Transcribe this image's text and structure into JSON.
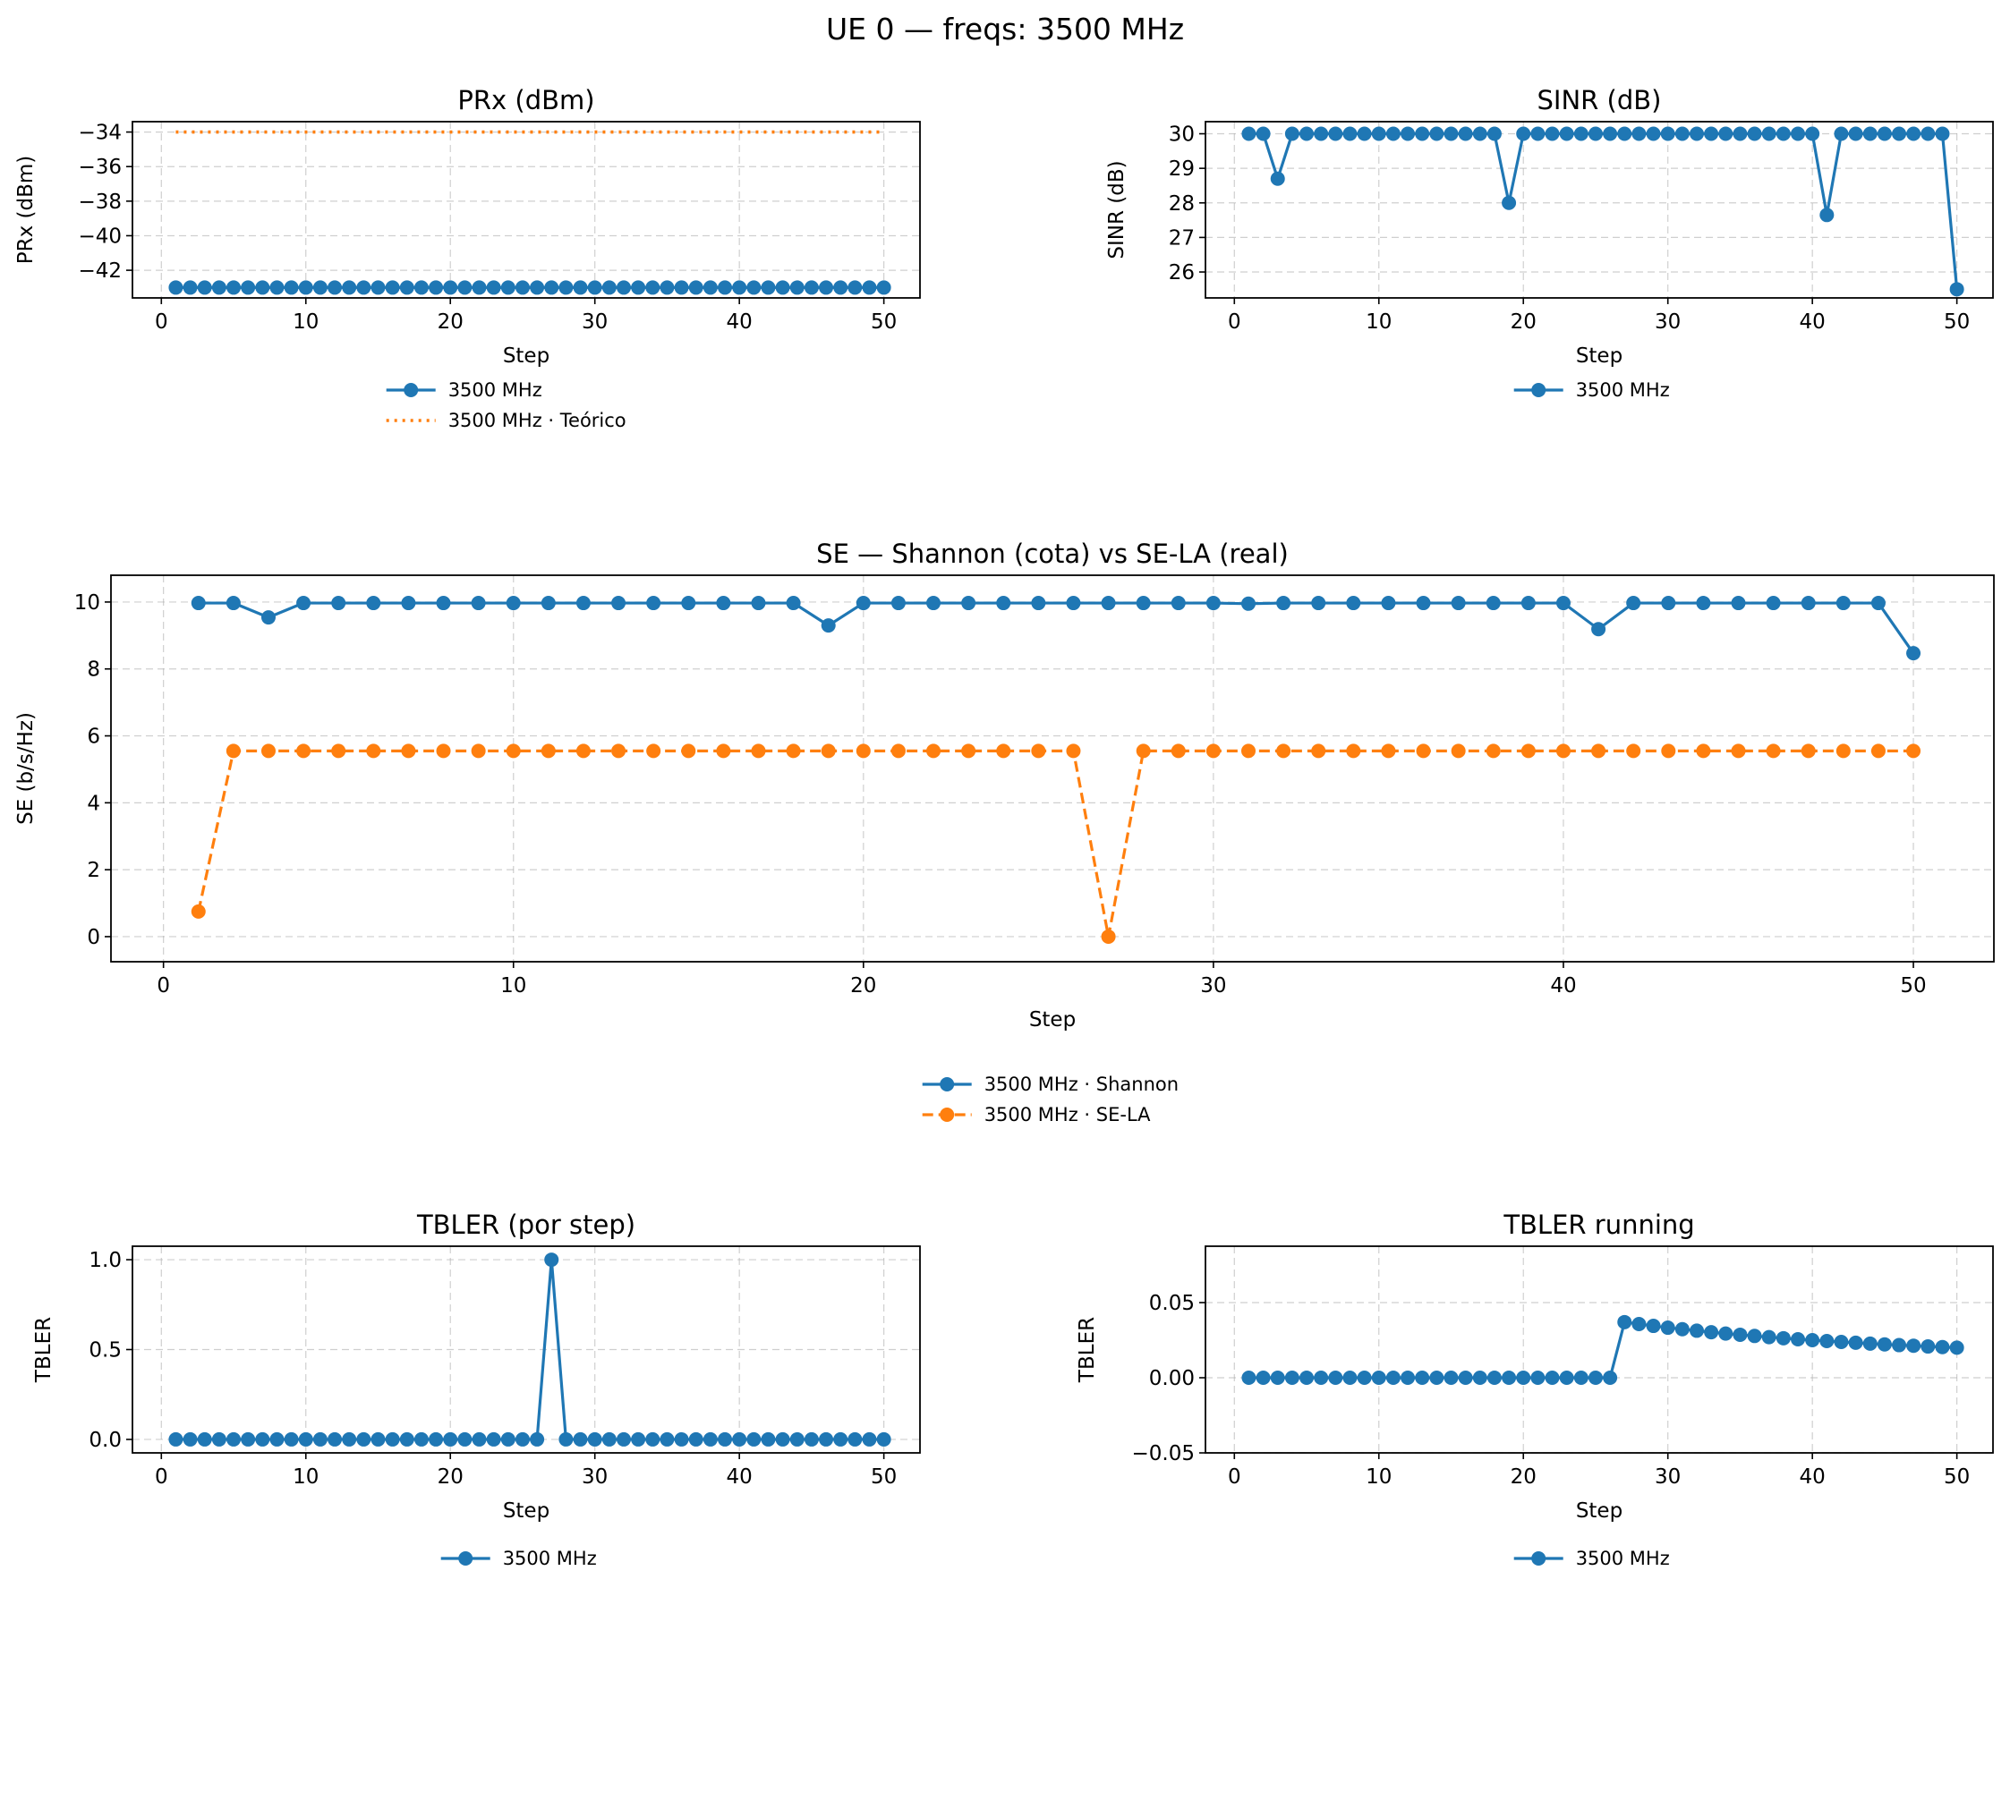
{
  "suptitle": "UE 0 — freqs: 3500 MHz",
  "colors": {
    "blue": "#1f77b4",
    "orange": "#ff7f0e"
  },
  "chart_data": [
    {
      "id": "prx",
      "type": "line",
      "title": "PRx (dBm)",
      "xlabel": "Step",
      "ylabel": "PRx (dBm)",
      "xlim": [
        -2,
        52.5
      ],
      "ylim": [
        -43.6,
        -33.4
      ],
      "xticks": [
        0,
        10,
        20,
        30,
        40,
        50
      ],
      "yticks": [
        -42,
        -40,
        -38,
        -36,
        -34
      ],
      "ytick_labels": [
        "−42",
        "−40",
        "−38",
        "−36",
        "−34"
      ],
      "grid": true,
      "legend_position": "below",
      "series": [
        {
          "name": "3500 MHz",
          "color": "#1f77b4",
          "style": "solid-marker",
          "x_start": 1,
          "x_end": 50,
          "values": [
            -43,
            -43,
            -43,
            -43,
            -43,
            -43,
            -43,
            -43,
            -43,
            -43,
            -43,
            -43,
            -43,
            -43,
            -43,
            -43,
            -43,
            -43,
            -43,
            -43,
            -43,
            -43,
            -43,
            -43,
            -43,
            -43,
            -43,
            -43,
            -43,
            -43,
            -43,
            -43,
            -43,
            -43,
            -43,
            -43,
            -43,
            -43,
            -43,
            -43,
            -43,
            -43,
            -43,
            -43,
            -43,
            -43,
            -43,
            -43,
            -43,
            -43
          ]
        },
        {
          "name": "3500 MHz · Teórico",
          "color": "#ff7f0e",
          "style": "dotted",
          "x_start": 1,
          "x_end": 50,
          "values": [
            -34,
            -34,
            -34,
            -34,
            -34,
            -34,
            -34,
            -34,
            -34,
            -34,
            -34,
            -34,
            -34,
            -34,
            -34,
            -34,
            -34,
            -34,
            -34,
            -34,
            -34,
            -34,
            -34,
            -34,
            -34,
            -34,
            -34,
            -34,
            -34,
            -34,
            -34,
            -34,
            -34,
            -34,
            -34,
            -34,
            -34,
            -34,
            -34,
            -34,
            -34,
            -34,
            -34,
            -34,
            -34,
            -34,
            -34,
            -34,
            -34,
            -34
          ]
        }
      ]
    },
    {
      "id": "sinr",
      "type": "line",
      "title": "SINR (dB)",
      "xlabel": "Step",
      "ylabel": "SINR (dB)",
      "xlim": [
        -2,
        52.5
      ],
      "ylim": [
        25.25,
        30.35
      ],
      "xticks": [
        0,
        10,
        20,
        30,
        40,
        50
      ],
      "yticks": [
        26,
        27,
        28,
        29,
        30
      ],
      "grid": true,
      "legend_position": "below",
      "series": [
        {
          "name": "3500 MHz",
          "color": "#1f77b4",
          "style": "solid-marker",
          "x_start": 1,
          "x_end": 50,
          "values": [
            30,
            30,
            28.7,
            30,
            30,
            30,
            30,
            30,
            30,
            30,
            30,
            30,
            30,
            30,
            30,
            30,
            30,
            30,
            28,
            30,
            30,
            30,
            30,
            30,
            30,
            30,
            30,
            30,
            30,
            30,
            30,
            30,
            30,
            30,
            30,
            30,
            30,
            30,
            30,
            30,
            27.65,
            30,
            30,
            30,
            30,
            30,
            30,
            30,
            30,
            25.5
          ]
        }
      ]
    },
    {
      "id": "se",
      "type": "line",
      "title": "SE — Shannon (cota) vs SE-LA (real)",
      "xlabel": "Step",
      "ylabel": "SE (b/s/Hz)",
      "xlim": [
        -1.5,
        52.3
      ],
      "ylim": [
        -0.75,
        10.8
      ],
      "xticks": [
        0,
        10,
        20,
        30,
        40,
        50
      ],
      "yticks": [
        0,
        2,
        4,
        6,
        8,
        10
      ],
      "grid": true,
      "legend_position": "below",
      "series": [
        {
          "name": "3500 MHz · Shannon",
          "color": "#1f77b4",
          "style": "solid-marker",
          "x_start": 1,
          "x_end": 50,
          "values": [
            9.97,
            9.97,
            9.54,
            9.97,
            9.97,
            9.97,
            9.97,
            9.97,
            9.97,
            9.97,
            9.97,
            9.97,
            9.97,
            9.97,
            9.97,
            9.97,
            9.97,
            9.97,
            9.3,
            9.97,
            9.97,
            9.97,
            9.97,
            9.97,
            9.97,
            9.97,
            9.97,
            9.97,
            9.97,
            9.97,
            9.95,
            9.97,
            9.97,
            9.97,
            9.97,
            9.97,
            9.97,
            9.97,
            9.97,
            9.97,
            9.19,
            9.97,
            9.97,
            9.97,
            9.97,
            9.97,
            9.97,
            9.97,
            9.97,
            8.47
          ]
        },
        {
          "name": "3500 MHz · SE-LA",
          "color": "#ff7f0e",
          "style": "dashed-marker",
          "x_start": 1,
          "x_end": 50,
          "values": [
            0.75,
            5.55,
            5.55,
            5.55,
            5.55,
            5.55,
            5.55,
            5.55,
            5.55,
            5.55,
            5.55,
            5.55,
            5.55,
            5.55,
            5.55,
            5.55,
            5.55,
            5.55,
            5.55,
            5.55,
            5.55,
            5.55,
            5.55,
            5.55,
            5.55,
            5.55,
            0,
            5.55,
            5.55,
            5.55,
            5.55,
            5.55,
            5.55,
            5.55,
            5.55,
            5.55,
            5.55,
            5.55,
            5.55,
            5.55,
            5.55,
            5.55,
            5.55,
            5.55,
            5.55,
            5.55,
            5.55,
            5.55,
            5.55,
            5.55
          ]
        }
      ]
    },
    {
      "id": "tbler",
      "type": "line",
      "title": "TBLER (por step)",
      "xlabel": "Step",
      "ylabel": "TBLER",
      "xlim": [
        -2,
        52.5
      ],
      "ylim": [
        -0.075,
        1.075
      ],
      "xticks": [
        0,
        10,
        20,
        30,
        40,
        50
      ],
      "yticks": [
        0,
        0.5,
        1
      ],
      "ytick_labels": [
        "0.0",
        "0.5",
        "1.0"
      ],
      "grid": true,
      "legend_position": "below",
      "series": [
        {
          "name": "3500 MHz",
          "color": "#1f77b4",
          "style": "solid-marker",
          "x_start": 1,
          "x_end": 50,
          "values": [
            0,
            0,
            0,
            0,
            0,
            0,
            0,
            0,
            0,
            0,
            0,
            0,
            0,
            0,
            0,
            0,
            0,
            0,
            0,
            0,
            0,
            0,
            0,
            0,
            0,
            0,
            1,
            0,
            0,
            0,
            0,
            0,
            0,
            0,
            0,
            0,
            0,
            0,
            0,
            0,
            0,
            0,
            0,
            0,
            0,
            0,
            0,
            0,
            0,
            0
          ]
        }
      ]
    },
    {
      "id": "tbler_running",
      "type": "line",
      "title": "TBLER running",
      "xlabel": "Step",
      "ylabel": "TBLER",
      "xlim": [
        -2,
        52.5
      ],
      "ylim": [
        -0.05,
        0.0875
      ],
      "xticks": [
        0,
        10,
        20,
        30,
        40,
        50
      ],
      "yticks": [
        -0.05,
        0,
        0.05
      ],
      "ytick_labels": [
        "−0.05",
        "0.00",
        "0.05"
      ],
      "grid": true,
      "legend_position": "below",
      "series": [
        {
          "name": "3500 MHz",
          "color": "#1f77b4",
          "style": "solid-marker",
          "x_start": 1,
          "x_end": 50,
          "values": [
            0,
            0,
            0,
            0,
            0,
            0,
            0,
            0,
            0,
            0,
            0,
            0,
            0,
            0,
            0,
            0,
            0,
            0,
            0,
            0,
            0,
            0,
            0,
            0,
            0,
            0,
            0.037,
            0.0357,
            0.0345,
            0.0333,
            0.0323,
            0.0313,
            0.0303,
            0.0294,
            0.0286,
            0.0278,
            0.027,
            0.0263,
            0.0256,
            0.025,
            0.0244,
            0.0238,
            0.0233,
            0.0227,
            0.0222,
            0.0217,
            0.0213,
            0.0208,
            0.0204,
            0.02
          ]
        }
      ]
    }
  ]
}
